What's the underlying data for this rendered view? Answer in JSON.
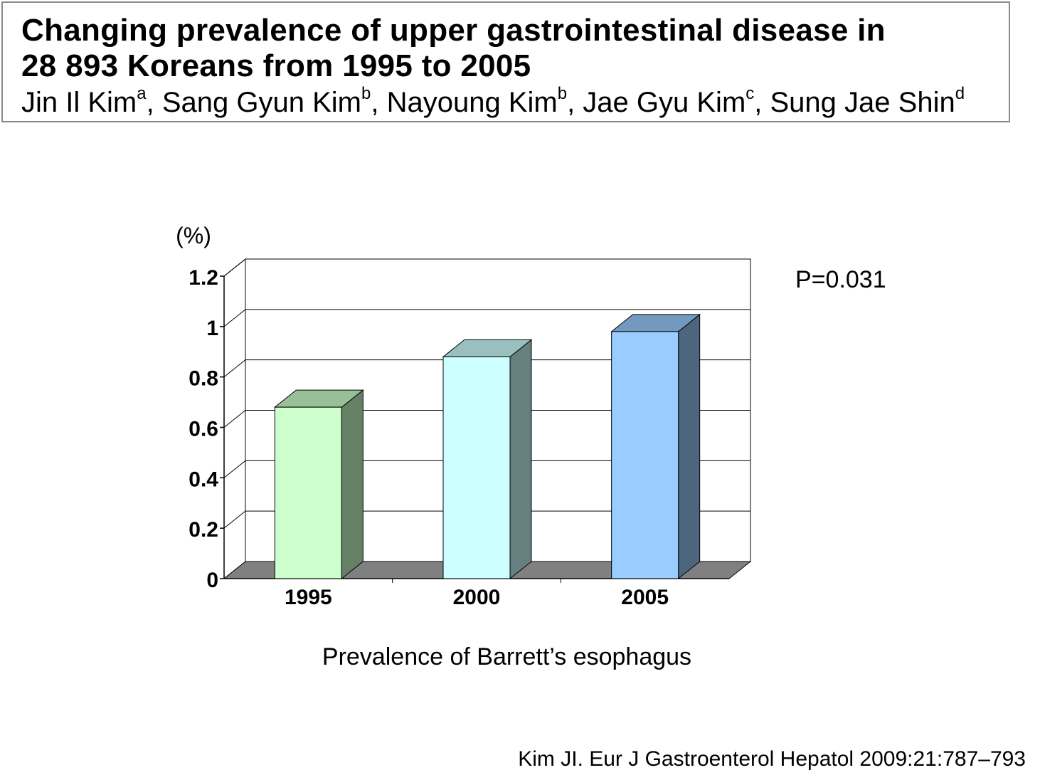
{
  "header": {
    "title_line_1": "Changing prevalence of upper gastrointestinal disease in",
    "title_line_2": "28 893 Koreans from 1995 to 2005",
    "authors": [
      {
        "name": "Jin Il Kim",
        "sup": "a"
      },
      {
        "name": "Sang Gyun Kim",
        "sup": "b"
      },
      {
        "name": "Nayoung Kim",
        "sup": "b"
      },
      {
        "name": "Jae Gyu Kim",
        "sup": "c"
      },
      {
        "name": "Sung Jae Shin",
        "sup": "d"
      }
    ]
  },
  "chart_data": {
    "type": "bar",
    "categories": [
      "1995",
      "2000",
      "2005"
    ],
    "values": [
      0.68,
      0.88,
      0.98
    ],
    "ylabel": "(%)",
    "ylim": [
      0,
      1.2
    ],
    "yticks": [
      "0",
      "0.2",
      "0.4",
      "0.6",
      "0.8",
      "1",
      "1.2"
    ],
    "xlabel": "Prevalence of Barrett’s esophagus",
    "annotation": "P=0.031",
    "grid": true,
    "bar_colors": [
      {
        "front": "#ccffcc",
        "side": "#668066",
        "top": "#99bf99"
      },
      {
        "front": "#ccffff",
        "side": "#668080",
        "top": "#99bfbf"
      },
      {
        "front": "#99ccff",
        "side": "#4d6680",
        "top": "#7399bf"
      }
    ],
    "floor_color": "#808080"
  },
  "citation": "Kim JI. Eur J Gastroenterol Hepatol 2009:21:787–793"
}
